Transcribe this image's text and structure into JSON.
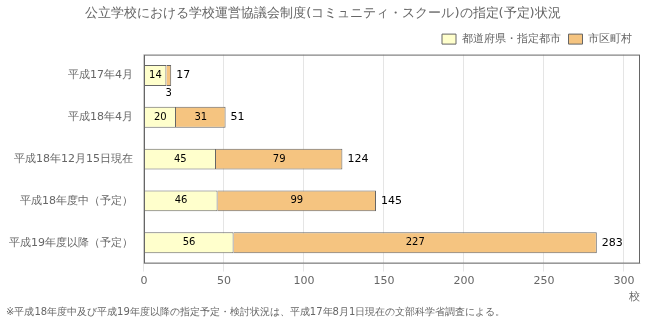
{
  "chart_data": {
    "type": "bar",
    "orientation": "horizontal",
    "stacked": true,
    "title": "公立学校における学校運営協議会制度(コミュニティ・スクール)の指定(予定)状況",
    "categories": [
      "平成17年4月",
      "平成18年4月",
      "平成18年12月15日現在",
      "平成18年度中（予定）",
      "平成19年度以降（予定）"
    ],
    "series": [
      {
        "name": "都道府県・指定都市",
        "color": "#ffffcc",
        "values": [
          14,
          20,
          45,
          46,
          56
        ]
      },
      {
        "name": "市区町村",
        "color": "#f5c480",
        "values": [
          3,
          31,
          79,
          99,
          227
        ]
      }
    ],
    "totals": [
      17,
      51,
      124,
      145,
      283
    ],
    "xlabel": "校",
    "footnote": "※平成18年度中及び平成19年度以降の指定予定・検討状況は、平成17年8月1日現在の文部科学省調査による。",
    "xlim": [
      0,
      310
    ],
    "xticks": [
      0,
      50,
      100,
      150,
      200,
      250,
      300
    ],
    "grid": true,
    "legend": "upper right",
    "data_labels": true
  }
}
